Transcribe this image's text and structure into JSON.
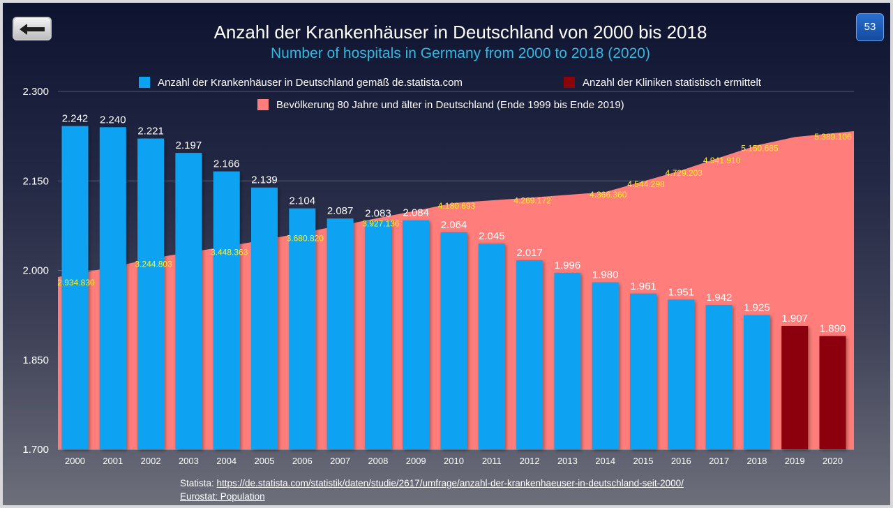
{
  "page_number": "53",
  "title": "Anzahl der Krankenhäuser in Deutschland von 2000 bis 2018",
  "subtitle": "Number of hospitals in Germany from 2000 to 2018 (2020)",
  "source": {
    "prefix": "Statista: ",
    "url_text": "https://de.statista.com/statistik/daten/studie/2617/umfrage/anzahl-der-krankenhaeuser-in-deutschland-seit-2000/",
    "line2": "Eurostat: Population"
  },
  "colors": {
    "statista_bars": "#0aa2f2",
    "estimated_bars": "#8c0309",
    "population_area": "#ff7d7a",
    "population_labels": "#ffef29",
    "subtitle": "#35b7e0"
  },
  "chart_data": {
    "type": "bar",
    "ylim": [
      1700,
      2300
    ],
    "yticks": [
      "1.700",
      "1.850",
      "2.000",
      "2.150",
      "2.300"
    ],
    "grid": "horizontal",
    "legend_position": "top",
    "legend": [
      {
        "label": "Anzahl der Krankenhäuser in Deutschland gemäß de.statista.com",
        "color": "#0aa2f2"
      },
      {
        "label": "Anzahl der Kliniken statistisch ermittelt",
        "color": "#8c0309"
      },
      {
        "label": "Bevölkerung 80 Jahre und älter in Deutschland (Ende 1999 bis Ende 2019)",
        "color": "#ff7d7a"
      }
    ],
    "categories": [
      "2000",
      "2001",
      "2002",
      "2003",
      "2004",
      "2005",
      "2006",
      "2007",
      "2008",
      "2009",
      "2010",
      "2011",
      "2012",
      "2013",
      "2014",
      "2015",
      "2016",
      "2017",
      "2018",
      "2019",
      "2020"
    ],
    "series": [
      {
        "name": "Anzahl der Krankenhäuser in Deutschland gemäß de.statista.com",
        "kind": "bar",
        "values": [
          2242,
          2240,
          2221,
          2197,
          2166,
          2139,
          2104,
          2087,
          2083,
          2084,
          2064,
          2045,
          2017,
          1996,
          1980,
          1961,
          1951,
          1942,
          1925,
          null,
          null
        ],
        "labels": [
          "2.242",
          "2.240",
          "2.221",
          "2.197",
          "2.166",
          "2.139",
          "2.104",
          "2.087",
          "2.083",
          "2.084",
          "2.064",
          "2.045",
          "2.017",
          "1.996",
          "1.980",
          "1.961",
          "1.951",
          "1.942",
          "1.925",
          "",
          ""
        ]
      },
      {
        "name": "Anzahl der Kliniken statistisch ermittelt",
        "kind": "bar",
        "values": [
          null,
          null,
          null,
          null,
          null,
          null,
          null,
          null,
          null,
          null,
          null,
          null,
          null,
          null,
          null,
          null,
          null,
          null,
          null,
          1907,
          1890
        ],
        "labels": [
          "",
          "",
          "",
          "",
          "",
          "",
          "",
          "",
          "",
          "",
          "",
          "",
          "",
          "",
          "",
          "",
          "",
          "",
          "",
          "1.907",
          "1.890"
        ]
      },
      {
        "name": "Bevölkerung 80 Jahre und älter in Deutschland (Ende 1999 bis Ende 2019)",
        "kind": "area",
        "values": [
          2934830,
          3100000,
          3244803,
          3350000,
          3448363,
          3560000,
          3680820,
          3800000,
          3927136,
          4050000,
          4180693,
          4225000,
          4269172,
          4318000,
          4366360,
          4544298,
          4729203,
          4941910,
          5150685,
          5290000,
          5389106
        ],
        "labels": [
          "2.934.830",
          "",
          "3.244.803",
          "",
          "3.448.363",
          "",
          "3.680.820",
          "",
          "3.927.136",
          "",
          "4.180.693",
          "",
          "4.269.172",
          "",
          "4.366.360",
          "4.544.298",
          "4.729.203",
          "4.941.910",
          "5.150.685",
          "",
          "5.389.106"
        ]
      }
    ]
  }
}
